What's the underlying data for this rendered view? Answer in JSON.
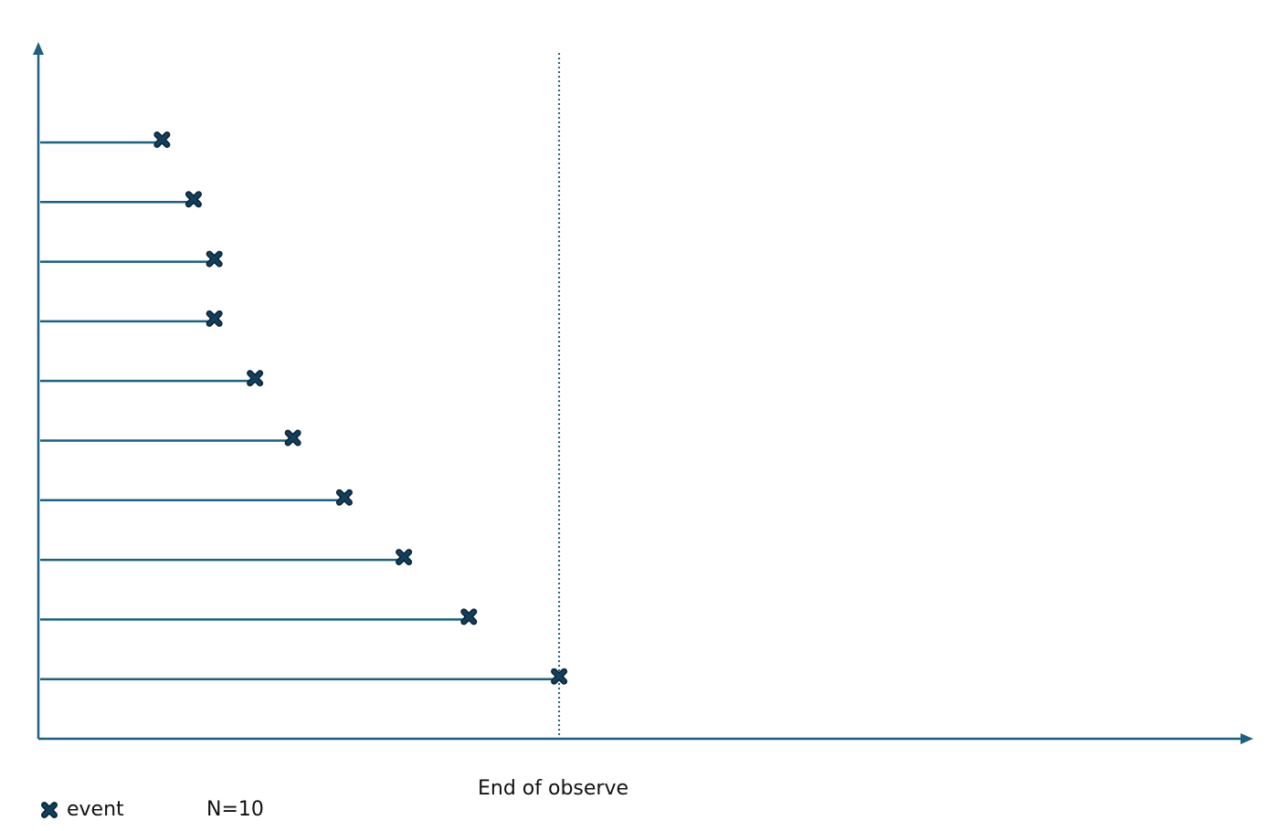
{
  "diagram": {
    "end_label": "End of observe",
    "legend": {
      "marker_label": "event",
      "n_label": "N=10"
    },
    "colors": {
      "line": "#1f5f7f",
      "marker_fill": "#123f5c",
      "marker_outline": "#0a2233"
    }
  },
  "chart_data": {
    "type": "scatter",
    "title": "",
    "xlabel": "",
    "ylabel": "",
    "series": [
      {
        "name": "event",
        "x": [
          1.35,
          1.7,
          1.93,
          1.93,
          2.38,
          2.8,
          3.37,
          4.03,
          4.75,
          5.75
        ],
        "y": [
          10,
          9,
          8,
          7,
          6,
          5,
          4,
          3,
          2,
          1
        ]
      }
    ],
    "end_of_observation_x": 5.75,
    "xlim": [
      0,
      13.3
    ],
    "ylim": [
      0,
      11.5
    ],
    "grid": false,
    "legend_position": "bottom-left"
  }
}
